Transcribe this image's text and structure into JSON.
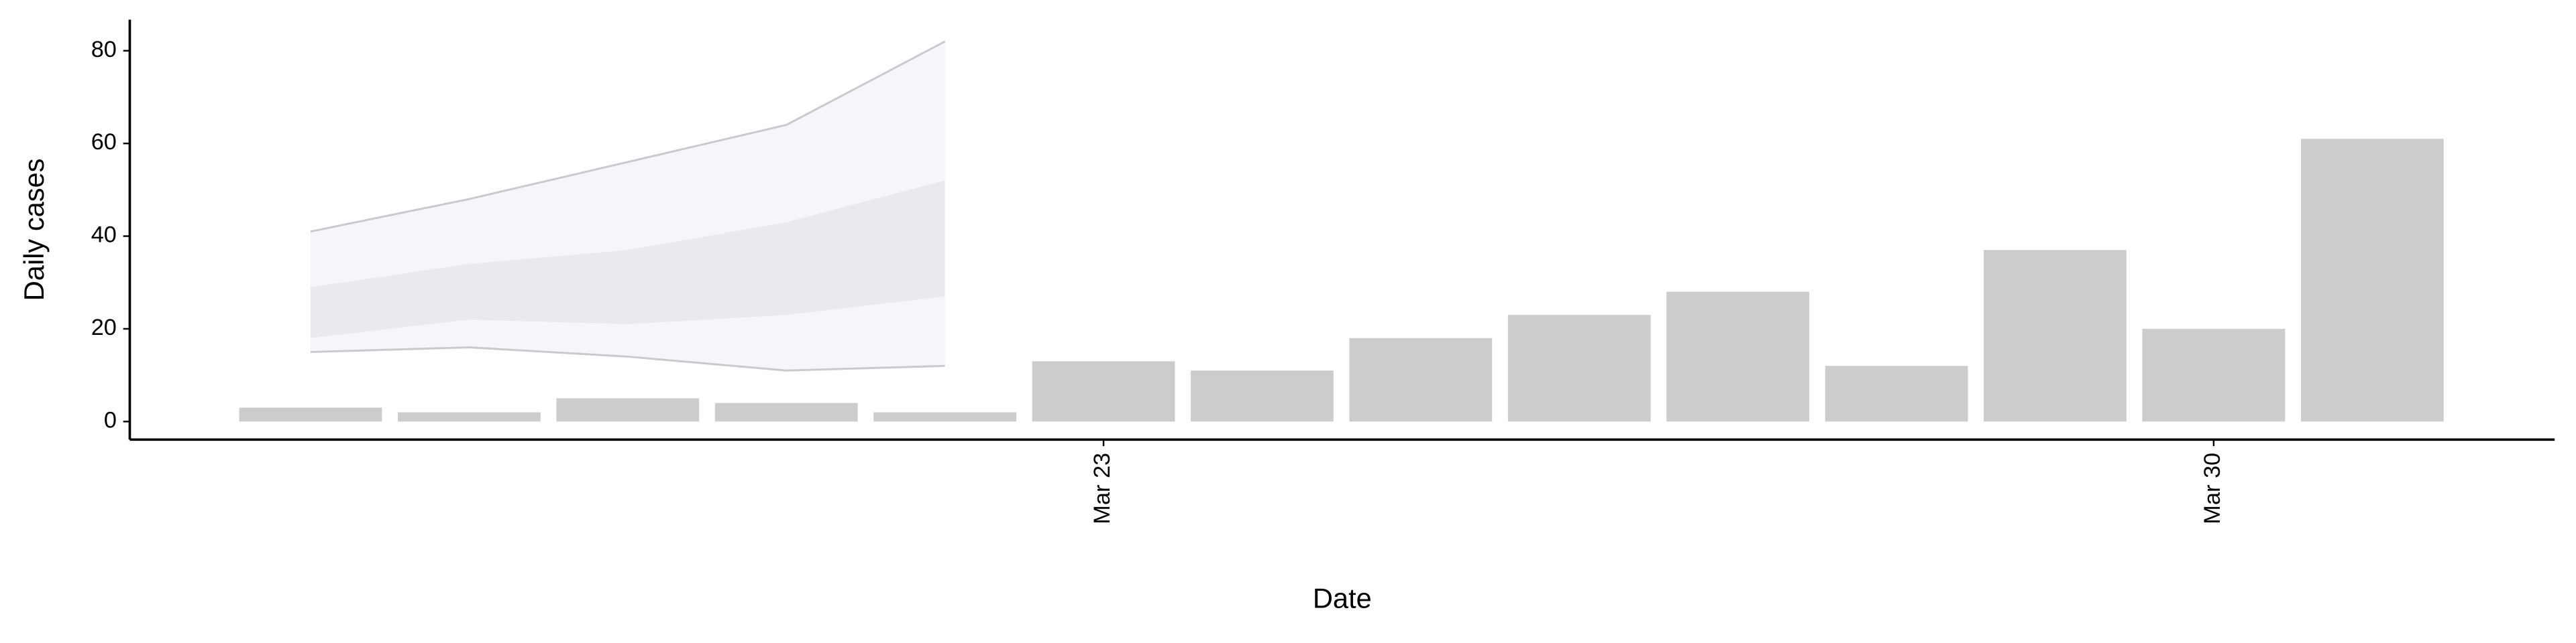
{
  "chart_data": {
    "type": "bar",
    "x_label": "Date",
    "y_label": "Daily cases",
    "x": [
      18,
      19,
      20,
      21,
      22,
      23,
      24,
      25,
      26,
      27,
      28,
      29,
      30,
      31
    ],
    "values": [
      3,
      2,
      5,
      4,
      2,
      13,
      11,
      18,
      23,
      28,
      12,
      37,
      20,
      61
    ],
    "color": "#cccccc",
    "bands": [
      {
        "x": [
          18,
          19,
          20,
          21,
          22
        ],
        "lower": [
          15,
          16,
          14,
          11,
          12
        ],
        "upper": [
          41,
          48,
          56,
          64,
          82
        ],
        "color": "#f3f4f8",
        "edge_color": "#bdbdc4"
      },
      {
        "x": [
          18,
          19,
          20,
          21,
          22
        ],
        "lower": [
          18,
          22,
          21,
          23,
          27
        ],
        "upper": [
          29,
          34,
          37,
          43,
          52
        ],
        "color": "#e5e7ef"
      }
    ],
    "xlim": [
      16.86,
      32.15
    ],
    "ylim": [
      -3.9,
      86.7
    ],
    "xticks": [
      {
        "value": 23,
        "label": "Mar 23"
      },
      {
        "value": 30,
        "label": "Mar 30"
      }
    ],
    "yticks": [
      0,
      20,
      40,
      60,
      80
    ]
  }
}
